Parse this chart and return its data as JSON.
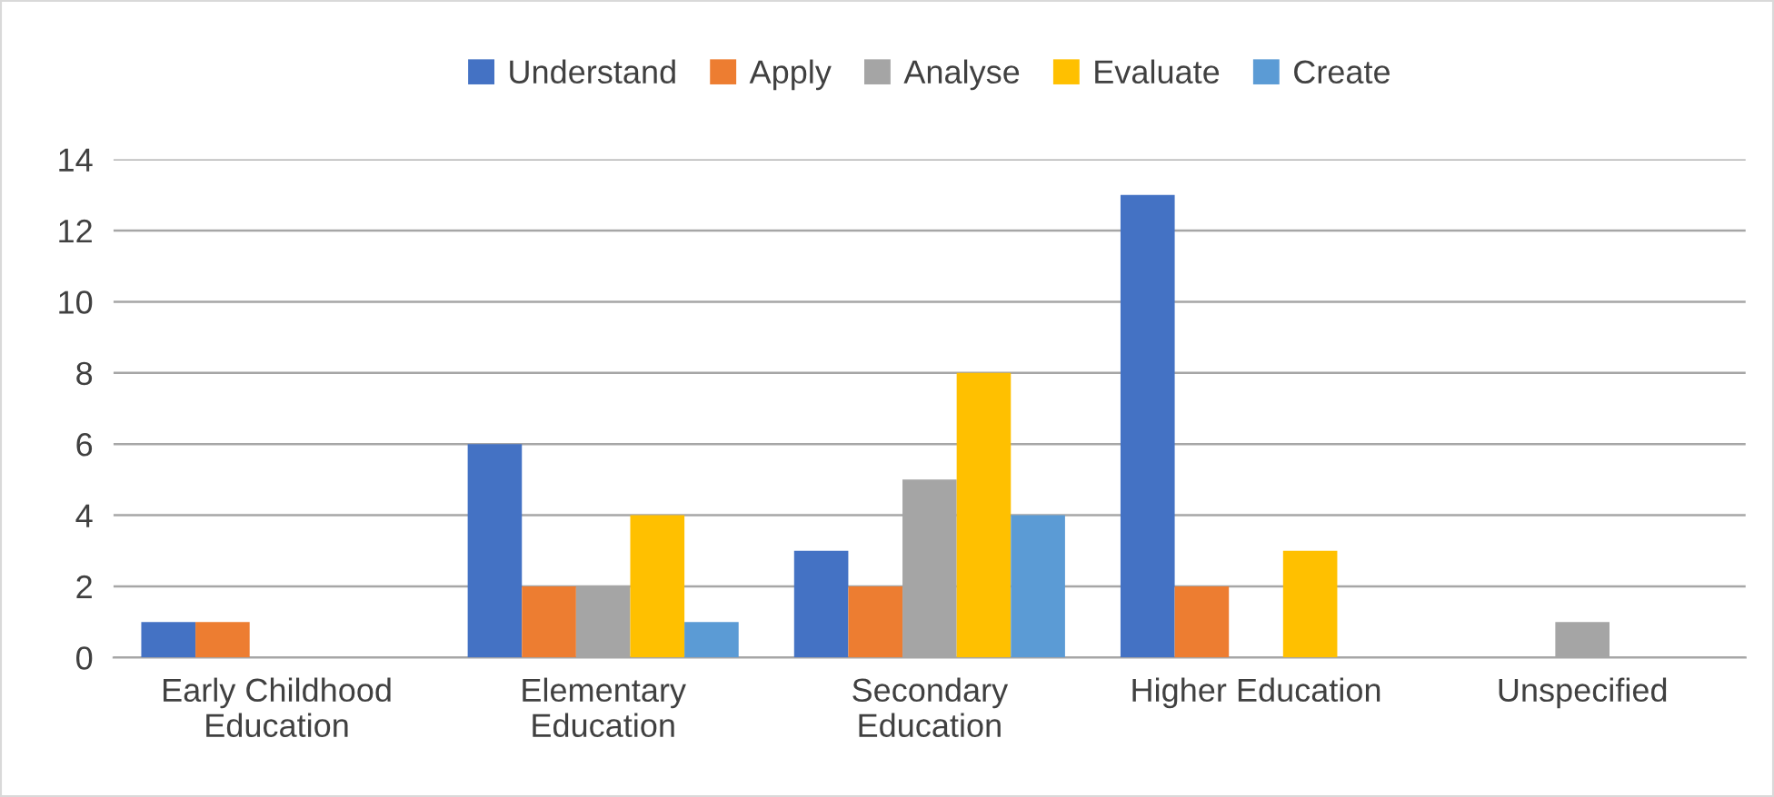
{
  "chart_data": {
    "type": "bar",
    "categories": [
      "Early Childhood Education",
      "Elementary Education",
      "Secondary Education",
      "Higher Education",
      "Unspecified"
    ],
    "series": [
      {
        "name": "Understand",
        "color": "#4472c4",
        "values": [
          1,
          6,
          3,
          13,
          0
        ]
      },
      {
        "name": "Apply",
        "color": "#ed7d31",
        "values": [
          1,
          2,
          2,
          2,
          0
        ]
      },
      {
        "name": "Analyse",
        "color": "#a5a5a5",
        "values": [
          0,
          2,
          5,
          0,
          1
        ]
      },
      {
        "name": "Evaluate",
        "color": "#ffc000",
        "values": [
          0,
          4,
          8,
          3,
          0
        ]
      },
      {
        "name": "Create",
        "color": "#5b9bd5",
        "values": [
          0,
          1,
          4,
          0,
          0
        ]
      }
    ],
    "ylim": [
      0,
      14
    ],
    "yticks": [
      0,
      2,
      4,
      6,
      8,
      10,
      12,
      14
    ],
    "grid": "y",
    "legend": "top"
  }
}
